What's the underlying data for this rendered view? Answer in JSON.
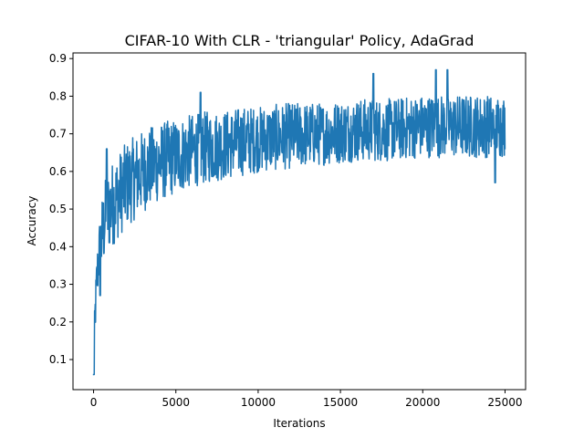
{
  "chart_data": {
    "type": "line",
    "title": "CIFAR-10 With CLR - 'triangular' Policy, AdaGrad",
    "xlabel": "Iterations",
    "ylabel": "Accuracy",
    "xlim": [
      -1250,
      26250
    ],
    "ylim": [
      0.02,
      0.915
    ],
    "x_ticks": [
      0,
      5000,
      10000,
      15000,
      20000,
      25000
    ],
    "x_tick_labels": [
      "0",
      "5000",
      "10000",
      "15000",
      "20000",
      "25000"
    ],
    "y_ticks": [
      0.1,
      0.2,
      0.3,
      0.4,
      0.5,
      0.6,
      0.7,
      0.8,
      0.9
    ],
    "y_tick_labels": [
      "0.1",
      "0.2",
      "0.3",
      "0.4",
      "0.5",
      "0.6",
      "0.7",
      "0.8",
      "0.9"
    ],
    "grid": false,
    "series": [
      {
        "color": "#1f77b4",
        "sample_interval": 1,
        "x_range": [
          0,
          25000
        ],
        "envelope": {
          "x": [
            0,
            100,
            200,
            300,
            500,
            700,
            1000,
            1500,
            2000,
            3000,
            4000,
            5000,
            6000,
            7000,
            8000,
            9000,
            10000,
            12000,
            14000,
            16000,
            18000,
            20000,
            22000,
            24000,
            25000
          ],
          "low": [
            0.06,
            0.15,
            0.22,
            0.27,
            0.3,
            0.34,
            0.37,
            0.4,
            0.43,
            0.47,
            0.5,
            0.52,
            0.54,
            0.55,
            0.56,
            0.57,
            0.58,
            0.59,
            0.6,
            0.61,
            0.61,
            0.62,
            0.62,
            0.62,
            0.62
          ],
          "high": [
            0.15,
            0.3,
            0.4,
            0.47,
            0.55,
            0.6,
            0.64,
            0.67,
            0.7,
            0.73,
            0.75,
            0.76,
            0.77,
            0.78,
            0.78,
            0.79,
            0.79,
            0.8,
            0.8,
            0.81,
            0.81,
            0.82,
            0.82,
            0.82,
            0.82
          ]
        },
        "peaks": [
          {
            "x": 800,
            "y": 0.66
          },
          {
            "x": 6500,
            "y": 0.81
          },
          {
            "x": 17000,
            "y": 0.86
          },
          {
            "x": 20800,
            "y": 0.87
          },
          {
            "x": 21500,
            "y": 0.87
          }
        ],
        "troughs": [
          {
            "x": 20,
            "y": 0.06
          },
          {
            "x": 400,
            "y": 0.27
          },
          {
            "x": 24400,
            "y": 0.57
          }
        ]
      }
    ]
  }
}
